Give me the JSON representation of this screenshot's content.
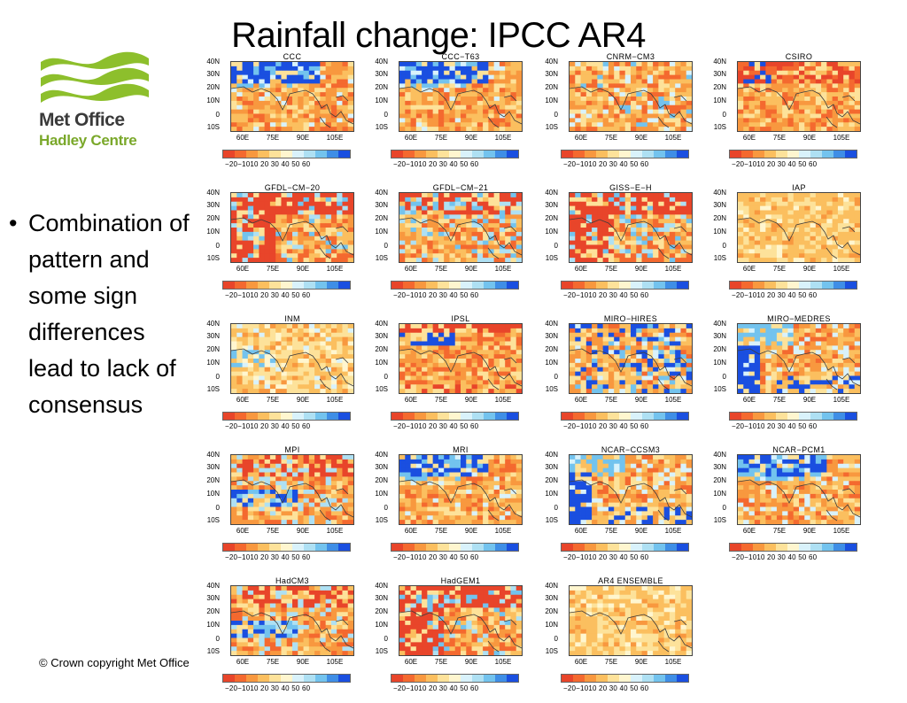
{
  "slide": {
    "title": "Rainfall change: IPCC AR4",
    "bullet_marker": "•",
    "bullet_text": "Combination of pattern and some sign differences lead to lack of consensus",
    "copyright": "© Crown copyright   Met Office"
  },
  "logo": {
    "name": "Met Office",
    "subtitle": "Hadley Centre",
    "colors": {
      "waves": "#8dbf2c",
      "name": "#3a3a3a",
      "subtitle": "#7aa82a"
    }
  },
  "axes": {
    "y_labels": [
      "40N",
      "30N",
      "20N",
      "10N",
      "0",
      "10S"
    ],
    "x_labels": [
      "60E",
      "75E",
      "90E",
      "105E"
    ]
  },
  "colorbar": {
    "tick_labels": "−20−1010 20 30 40 50 60",
    "colors": [
      "#e8452a",
      "#f4692f",
      "#f8983f",
      "#fbbf5f",
      "#fde29a",
      "#fff6cf",
      "#d9f2fb",
      "#aee0f3",
      "#73c3ee",
      "#3f8ee6",
      "#1a4fe0"
    ]
  },
  "panels": [
    {
      "name": "CCC",
      "style": "north-blue"
    },
    {
      "name": "CCC−T63",
      "style": "north-blue"
    },
    {
      "name": "CNRM−CM3",
      "style": "mixed-light"
    },
    {
      "name": "CSIRO",
      "style": "north-red"
    },
    {
      "name": "GFDL−CM−20",
      "style": "red-heavy"
    },
    {
      "name": "GFDL−CM−21",
      "style": "red-mixed"
    },
    {
      "name": "GISS−E−H",
      "style": "red-heavy"
    },
    {
      "name": "IAP",
      "style": "light-uniform"
    },
    {
      "name": "INM",
      "style": "light-mixed"
    },
    {
      "name": "IPSL",
      "style": "north-red-blue"
    },
    {
      "name": "MIRO−HIRES",
      "style": "blue-patchy"
    },
    {
      "name": "MIRO−MEDRES",
      "style": "west-blue"
    },
    {
      "name": "MPI",
      "style": "mixed-blue"
    },
    {
      "name": "MRI",
      "style": "north-blue"
    },
    {
      "name": "NCAR−CCSM3",
      "style": "west-blue"
    },
    {
      "name": "NCAR−PCM1",
      "style": "north-blue"
    },
    {
      "name": "HadCM3",
      "style": "mixed-blue"
    },
    {
      "name": "HadGEM1",
      "style": "red-heavy"
    },
    {
      "name": "AR4  ENSEMBLE",
      "style": "light-uniform"
    }
  ]
}
